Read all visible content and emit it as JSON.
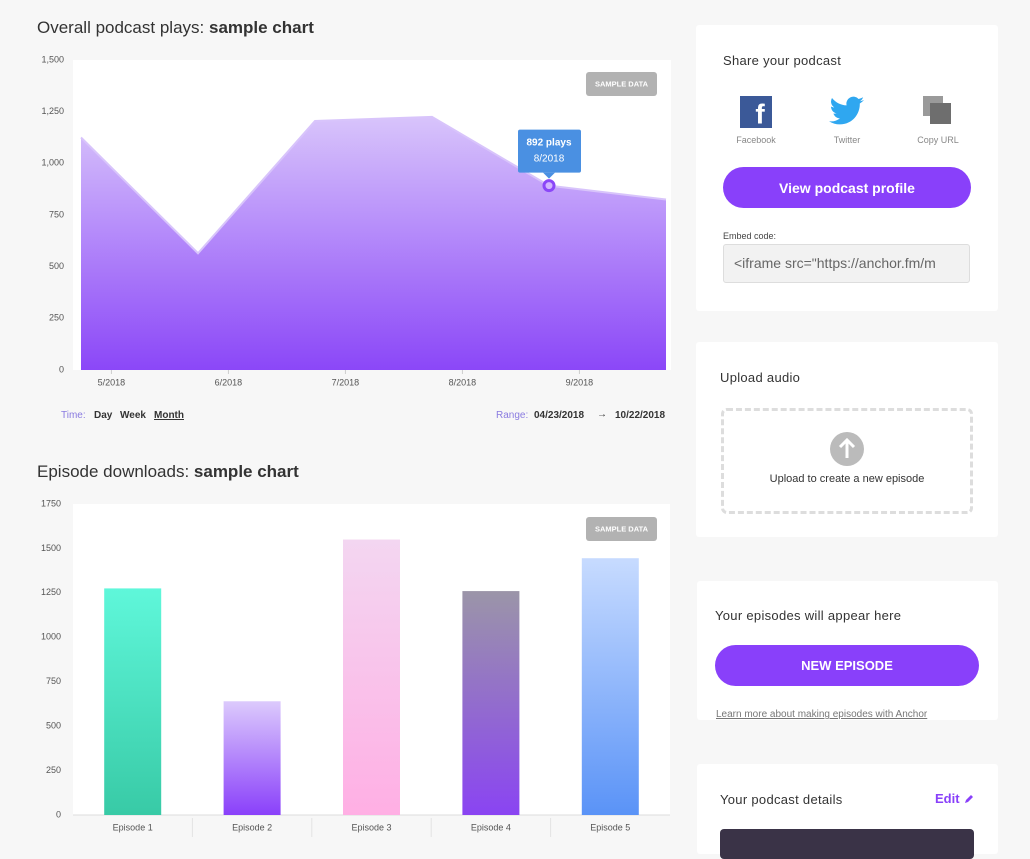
{
  "chart_data": [
    {
      "type": "area",
      "title": "Overall podcast plays:",
      "title_emphasis": "sample chart",
      "badge": "SAMPLE DATA",
      "x": [
        null,
        "5/2018",
        "6/2018",
        "7/2018",
        "8/2018",
        "9/2018"
      ],
      "values": [
        1125,
        565,
        1205,
        1225,
        892,
        825
      ],
      "value_labels": [
        null,
        null,
        null,
        null,
        "892 plays",
        null
      ],
      "color": "#8b47f8",
      "gradient_top": "#d8c4fb",
      "tooltip_color": "#4a90e2",
      "ylim": [
        0,
        1500
      ],
      "yticks": [
        0,
        250,
        500,
        750,
        {
          "value": 1000,
          "label": "1,000"
        },
        {
          "value": 1250,
          "label": "1,250"
        },
        {
          "value": 1500,
          "label": "1,500"
        }
      ]
    },
    {
      "type": "bar",
      "title": "Episode downloads:",
      "title_emphasis": "sample chart",
      "badge": "SAMPLE DATA",
      "categories": [
        "Episode 1",
        "Episode 2",
        "Episode 3",
        "Episode 4",
        "Episode 5"
      ],
      "values": [
        1275,
        640,
        1550,
        1260,
        1445
      ],
      "colors": [
        [
          "#5ff7da",
          "#38caa6"
        ],
        [
          "#dccafc",
          "#8a40fa"
        ],
        [
          "#f3d6f1",
          "#ffafe4"
        ],
        [
          "#9b95a8",
          "#8a44f2"
        ],
        [
          "#c7dbff",
          "#5a93f7"
        ]
      ],
      "ylim": [
        0,
        1750
      ],
      "yticks": [
        0,
        250,
        500,
        750,
        1000,
        1250,
        1500,
        1750
      ]
    }
  ],
  "controls": {
    "time_label": "Time:",
    "time_options": [
      "Day",
      "Week",
      "Month"
    ],
    "range_label": "Range:",
    "range_start": "04/23/2018",
    "range_arrow": "→",
    "range_end": "10/22/2018"
  },
  "sidebar": {
    "share": {
      "title": "Share your podcast",
      "options": [
        "Facebook",
        "Twitter",
        "Copy URL"
      ],
      "button": "View podcast profile",
      "embed_label": "Embed code:",
      "embed_value": "<iframe src=\"https://anchor.fm/m"
    },
    "upload": {
      "title": "Upload audio",
      "hint": "Upload to create a new episode"
    },
    "episodes": {
      "title": "Your episodes will appear here",
      "button": "NEW EPISODE",
      "link": "Learn more about making episodes with Anchor"
    },
    "details": {
      "title": "Your podcast details",
      "edit": "Edit"
    }
  }
}
